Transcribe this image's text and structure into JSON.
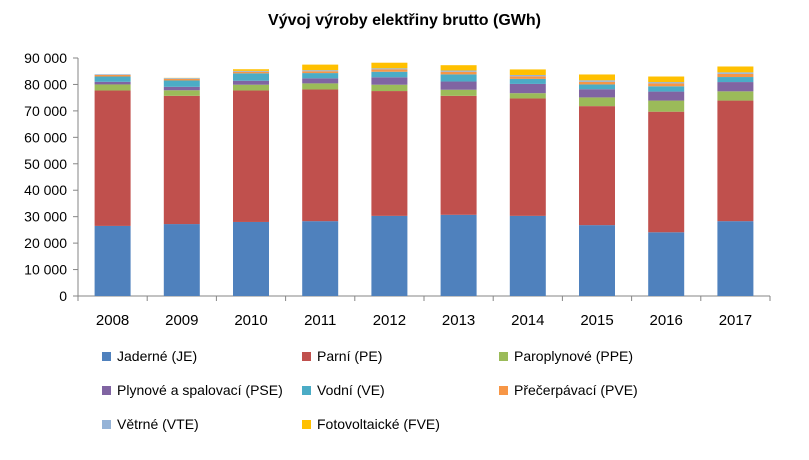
{
  "chart_data": {
    "type": "bar",
    "stacked": true,
    "title": "Vývoj výroby elektřiny brutto (GWh)",
    "xlabel": "",
    "ylabel": "",
    "ylim": [
      0,
      90000
    ],
    "yticks": [
      "0",
      "10 000",
      "20 000",
      "30 000",
      "40 000",
      "50 000",
      "60 000",
      "70 000",
      "80 000",
      "90 000"
    ],
    "categories": [
      "2008",
      "2009",
      "2010",
      "2011",
      "2012",
      "2013",
      "2014",
      "2015",
      "2016",
      "2017"
    ],
    "grid": false,
    "legend_position": "bottom",
    "series": [
      {
        "name": "Jaderné (JE)",
        "color": "#4f81bd",
        "values": [
          26500,
          27200,
          28000,
          28300,
          30300,
          30700,
          30300,
          26800,
          24100,
          28300
        ]
      },
      {
        "name": "Parní (PE)",
        "color": "#c0504d",
        "values": [
          51200,
          48500,
          49700,
          49800,
          47200,
          45000,
          44400,
          45000,
          45600,
          45600
        ]
      },
      {
        "name": "Paroplynové (PPE)",
        "color": "#9bbb59",
        "values": [
          2300,
          2100,
          2200,
          2300,
          2400,
          2300,
          2000,
          3300,
          4200,
          3500
        ]
      },
      {
        "name": "Plynové a spalovací (PSE)",
        "color": "#8064a2",
        "values": [
          1000,
          1300,
          1500,
          1900,
          2800,
          3100,
          3500,
          3100,
          3400,
          3500
        ]
      },
      {
        "name": "Vodní (VE)",
        "color": "#4bacc6",
        "values": [
          2000,
          2400,
          2800,
          2000,
          2100,
          2700,
          1900,
          1800,
          2000,
          1900
        ]
      },
      {
        "name": "Přečerpávací (PVE)",
        "color": "#f79646",
        "values": [
          600,
          600,
          600,
          700,
          900,
          1000,
          1000,
          1000,
          1100,
          1200
        ]
      },
      {
        "name": "Větrné (VTE)",
        "color": "#95b3d7",
        "values": [
          250,
          300,
          330,
          400,
          420,
          480,
          480,
          570,
          500,
          590
        ]
      },
      {
        "name": "Fotovoltaické (FVE)",
        "color": "#ffc000",
        "values": [
          10,
          90,
          620,
          2100,
          2100,
          2000,
          2100,
          2200,
          2100,
          2200
        ]
      }
    ]
  }
}
